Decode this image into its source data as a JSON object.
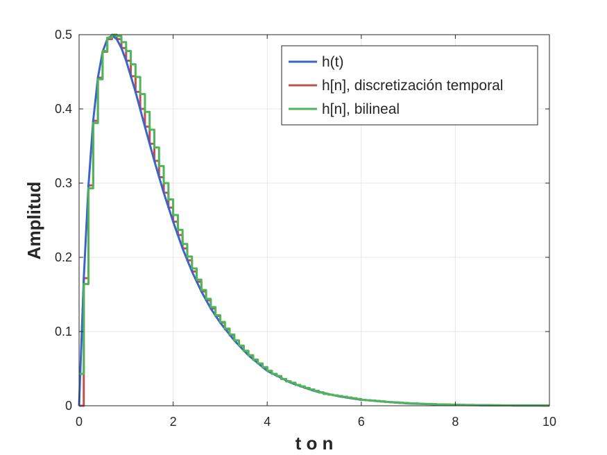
{
  "chart_data": {
    "type": "line",
    "title": "",
    "xlabel": "t o n",
    "ylabel": "Amplitud",
    "xlim": [
      0,
      10
    ],
    "ylim": [
      0,
      0.5
    ],
    "xticks": [
      0,
      2,
      4,
      6,
      8,
      10
    ],
    "xtick_labels": [
      "0",
      "2",
      "4",
      "6",
      "8",
      "10"
    ],
    "yticks": [
      0,
      0.1,
      0.2,
      0.3,
      0.4,
      0.5
    ],
    "ytick_labels": [
      "0",
      "0.1",
      "0.2",
      "0.3",
      "0.4",
      "0.5"
    ],
    "grid": true,
    "legend_position": "top-right",
    "series": [
      {
        "name": "h(t)",
        "style": "line",
        "color": "#3a64c8",
        "x": [
          0,
          0.1,
          0.2,
          0.3,
          0.4,
          0.5,
          0.6,
          0.7,
          0.8,
          0.9,
          1.0,
          1.2,
          1.4,
          1.6,
          1.8,
          2.0,
          2.2,
          2.4,
          2.6,
          2.8,
          3.0,
          3.3,
          3.6,
          4.0,
          4.5,
          5.0,
          5.5,
          6.0,
          7.0,
          8.0,
          9.0,
          10.0
        ],
        "y": [
          0,
          0.172,
          0.297,
          0.384,
          0.442,
          0.477,
          0.494,
          0.499,
          0.494,
          0.482,
          0.465,
          0.423,
          0.376,
          0.33,
          0.287,
          0.248,
          0.212,
          0.181,
          0.154,
          0.131,
          0.112,
          0.088,
          0.068,
          0.047,
          0.031,
          0.02,
          0.013,
          0.008,
          0.003,
          0.001,
          0.0005,
          0.0002
        ]
      },
      {
        "name": "h[n], discretización temporal",
        "style": "step",
        "color": "#c0504d",
        "step": 0.1,
        "x_start": 0,
        "y": [
          0,
          0.172,
          0.297,
          0.384,
          0.442,
          0.477,
          0.494,
          0.499,
          0.494,
          0.482,
          0.465,
          0.444,
          0.423,
          0.4,
          0.376,
          0.353,
          0.33,
          0.308,
          0.287,
          0.267,
          0.248,
          0.23,
          0.212,
          0.196,
          0.181,
          0.167,
          0.154,
          0.142,
          0.131,
          0.121,
          0.112,
          0.103,
          0.095,
          0.088,
          0.081,
          0.074,
          0.068,
          0.062,
          0.057,
          0.052,
          0.047,
          0.043,
          0.04,
          0.036,
          0.033,
          0.031,
          0.028,
          0.026,
          0.024,
          0.022,
          0.02,
          0.018,
          0.016,
          0.015,
          0.014,
          0.013,
          0.012,
          0.011,
          0.01,
          0.009,
          0.008,
          0.0075,
          0.007,
          0.0064,
          0.0058,
          0.0052,
          0.0048,
          0.0044,
          0.004,
          0.0037,
          0.0033,
          0.003,
          0.0028,
          0.0025,
          0.0023,
          0.0021,
          0.0019,
          0.0017,
          0.0016,
          0.0015,
          0.0013,
          0.0012,
          0.0011,
          0.001,
          0.0009,
          0.0008,
          0.0008,
          0.0007,
          0.0006,
          0.0006,
          0.0005,
          0.0005,
          0.0004,
          0.0004,
          0.0004,
          0.0003,
          0.0003,
          0.0003,
          0.0002,
          0.0002,
          0.0002
        ]
      },
      {
        "name": "h[n], bilineal",
        "style": "step",
        "color": "#4fb45a",
        "step": 0.1,
        "x_start": 0,
        "y": [
          0.043,
          0.164,
          0.293,
          0.381,
          0.44,
          0.478,
          0.496,
          0.5,
          0.498,
          0.49,
          0.478,
          0.46,
          0.443,
          0.42,
          0.396,
          0.372,
          0.348,
          0.323,
          0.3,
          0.278,
          0.257,
          0.237,
          0.218,
          0.201,
          0.185,
          0.17,
          0.156,
          0.144,
          0.133,
          0.122,
          0.113,
          0.104,
          0.096,
          0.088,
          0.081,
          0.074,
          0.068,
          0.062,
          0.057,
          0.052,
          0.047,
          0.043,
          0.04,
          0.036,
          0.033,
          0.031,
          0.028,
          0.026,
          0.024,
          0.022,
          0.02,
          0.018,
          0.016,
          0.015,
          0.014,
          0.013,
          0.012,
          0.011,
          0.01,
          0.009,
          0.008,
          0.0075,
          0.007,
          0.0064,
          0.0058,
          0.0052,
          0.0048,
          0.0044,
          0.004,
          0.0037,
          0.0033,
          0.003,
          0.0028,
          0.0025,
          0.0023,
          0.0021,
          0.0019,
          0.0017,
          0.0016,
          0.0015,
          0.0013,
          0.0012,
          0.0011,
          0.001,
          0.0009,
          0.0008,
          0.0008,
          0.0007,
          0.0006,
          0.0006,
          0.0005,
          0.0005,
          0.0004,
          0.0004,
          0.0004,
          0.0003,
          0.0003,
          0.0003,
          0.0002,
          0.0002,
          0.0002
        ]
      }
    ]
  }
}
